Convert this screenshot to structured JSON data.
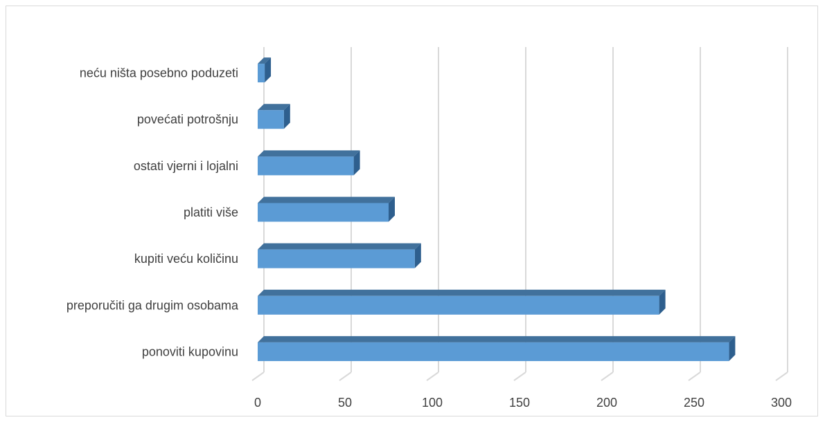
{
  "chart_data": {
    "type": "bar",
    "orientation": "horizontal",
    "style": "3d",
    "categories": [
      "neću ništa posebno poduzeti",
      "povećati potrošnju",
      "ostati vjerni i lojalni",
      "platiti više",
      "kupiti veću količinu",
      "preporučiti ga drugim osobama",
      "ponoviti kupovinu"
    ],
    "values": [
      4,
      15,
      55,
      75,
      90,
      230,
      270
    ],
    "xlim": [
      0,
      300
    ],
    "xticks": [
      0,
      50,
      100,
      150,
      200,
      250,
      300
    ],
    "grid": true,
    "legend": "none",
    "colors": {
      "bar_front": "#5b9bd5",
      "bar_top": "#41719c",
      "bar_side": "#2e5f8e",
      "grid": "#d9d9d9",
      "text": "#404040"
    }
  }
}
